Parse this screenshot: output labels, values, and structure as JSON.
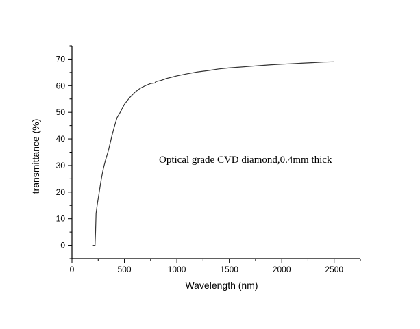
{
  "chart_data": {
    "type": "line",
    "title": "",
    "xlabel": "Wavelength (nm)",
    "ylabel": "transmittance (%)",
    "xlim": [
      0,
      2750
    ],
    "ylim": [
      -5,
      75
    ],
    "xticks": [
      0,
      500,
      1000,
      1500,
      2000,
      2500
    ],
    "yticks": [
      0,
      10,
      20,
      30,
      40,
      50,
      60,
      70
    ],
    "grid": false,
    "annotation": "Optical grade CVD diamond,0.4mm thick",
    "series": [
      {
        "x": [
          200,
          220,
          225,
          230,
          240,
          260,
          280,
          300,
          320,
          350,
          380,
          400,
          430,
          460,
          500,
          550,
          600,
          650,
          700,
          750,
          790,
          800,
          850,
          900,
          950,
          1000,
          1100,
          1200,
          1300,
          1350,
          1400,
          1500,
          1600,
          1700,
          1800,
          1900,
          2000,
          2100,
          2200,
          2300,
          2400,
          2500
        ],
        "y": [
          0,
          0,
          5,
          12,
          15,
          20,
          25,
          29,
          32,
          36,
          41,
          44,
          48,
          50,
          53,
          55.5,
          57.5,
          59,
          60,
          60.8,
          61,
          61.5,
          62,
          62.7,
          63.2,
          63.7,
          64.5,
          65.2,
          65.7,
          66,
          66.3,
          66.7,
          67,
          67.3,
          67.6,
          67.9,
          68.1,
          68.3,
          68.5,
          68.7,
          68.9,
          69
        ]
      }
    ]
  }
}
